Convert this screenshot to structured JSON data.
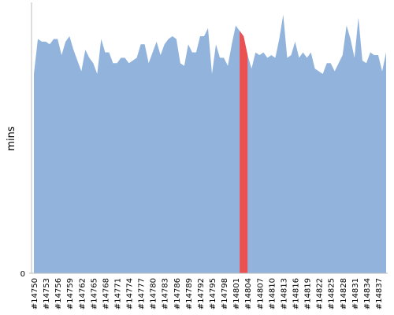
{
  "chart_data": {
    "type": "area",
    "ylabel": "mins",
    "categories": [
      "#14750",
      null,
      null,
      "#14753",
      null,
      null,
      "#14756",
      null,
      null,
      "#14759",
      null,
      null,
      "#14762",
      null,
      null,
      "#14765",
      null,
      null,
      "#14768",
      null,
      null,
      "#14771",
      null,
      null,
      "#14774",
      null,
      null,
      "#14777",
      null,
      null,
      "#14780",
      null,
      null,
      "#14783",
      null,
      null,
      "#14786",
      null,
      null,
      "#14789",
      null,
      null,
      "#14792",
      null,
      null,
      "#14795",
      null,
      null,
      "#14798",
      null,
      null,
      "#14801",
      null,
      null,
      "#14804",
      null,
      null,
      "#14807",
      null,
      null,
      "#14810",
      null,
      null,
      "#14813",
      null,
      null,
      "#14816",
      null,
      null,
      "#14819",
      null,
      null,
      "#14822",
      null,
      null,
      "#14825",
      null,
      null,
      "#14828",
      null,
      null,
      "#14831",
      null,
      null,
      "#14834",
      null,
      null,
      "#14837",
      null,
      null
    ],
    "values": [
      74,
      87,
      86,
      86,
      85,
      87,
      87,
      81,
      86,
      88,
      83,
      79,
      75,
      83,
      80,
      78,
      74,
      87,
      82,
      82,
      78,
      78,
      80,
      80,
      78,
      79,
      80,
      85,
      85,
      78,
      82,
      86,
      81,
      85,
      87,
      88,
      87,
      78,
      77,
      85,
      82,
      82,
      88,
      88,
      91,
      74,
      85,
      80,
      80,
      77,
      85,
      92,
      90,
      88,
      81,
      76,
      82,
      81,
      82,
      80,
      81,
      80,
      87,
      96,
      80,
      81,
      86,
      80,
      82,
      80,
      82,
      76,
      75,
      74,
      78,
      78,
      75,
      78,
      81,
      92,
      87,
      80,
      95,
      79,
      78,
      82,
      81,
      81,
      75,
      82
    ],
    "color": "#92b4dc",
    "highlight": {
      "index": [
        52,
        53,
        54
      ],
      "color": "#ec5151"
    },
    "ylim": [
      0,
      100
    ],
    "yticks": [
      0
    ]
  }
}
